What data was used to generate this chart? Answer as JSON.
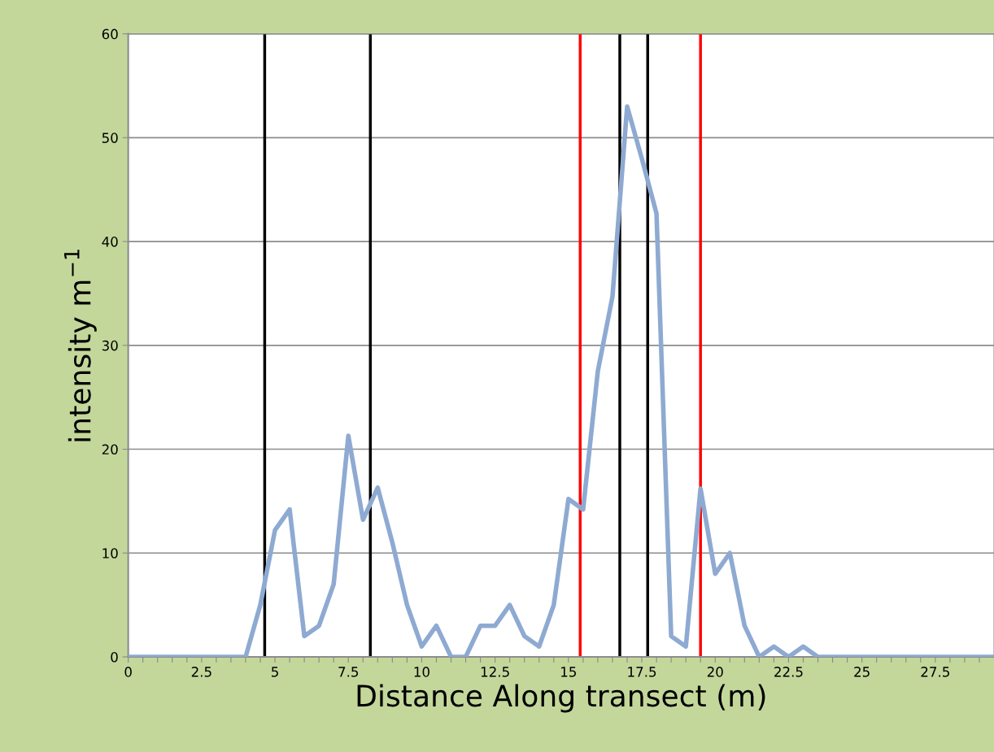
{
  "chart_data": {
    "type": "line",
    "xlabel": "Distance Along transect (m)",
    "ylabel": "intensity m$^{−1}$",
    "x": [
      0,
      0.5,
      1,
      1.5,
      2,
      2.5,
      3,
      3.5,
      4,
      4.5,
      5,
      5.5,
      6,
      6.5,
      7,
      7.5,
      8,
      8.5,
      9,
      9.5,
      10,
      10.5,
      11,
      11.5,
      12,
      12.5,
      13,
      13.5,
      14,
      14.5,
      15,
      15.5,
      16,
      16.5,
      17,
      17.5,
      18,
      18.5,
      19,
      19.5,
      20,
      20.5,
      21,
      21.5,
      22,
      22.5,
      23,
      23.5,
      24,
      24.5,
      25,
      25.5,
      26,
      26.5,
      27,
      27.5,
      28,
      28.5,
      29,
      29.5
    ],
    "series": [
      {
        "color": "#8eaad2",
        "values": [
          0,
          0,
          0,
          0,
          0,
          0,
          0,
          0,
          0,
          5,
          12.2,
          14.2,
          2,
          3,
          7,
          21.3,
          13.2,
          16.3,
          11,
          5,
          1,
          3,
          0,
          0,
          3,
          3,
          5,
          2,
          1,
          5,
          15.2,
          14.2,
          27.5,
          34.7,
          53,
          48,
          42.7,
          2,
          1,
          16.2,
          8,
          10,
          3,
          0,
          1,
          0,
          1,
          0,
          0,
          0,
          0,
          0,
          0,
          0,
          0,
          0,
          0,
          0,
          0,
          0
        ]
      }
    ],
    "xlim": [
      0,
      29.5
    ],
    "ylim": [
      0,
      60
    ],
    "xticks": [
      0,
      {
        "value": 0.5,
        "label": null
      },
      {
        "value": 1,
        "label": null
      },
      {
        "value": 1.5,
        "label": null
      },
      {
        "value": 2,
        "label": null
      },
      2.5,
      {
        "value": 3,
        "label": null
      },
      {
        "value": 3.5,
        "label": null
      },
      {
        "value": 4,
        "label": null
      },
      {
        "value": 4.5,
        "label": null
      },
      5,
      {
        "value": 5.5,
        "label": null
      },
      {
        "value": 6,
        "label": null
      },
      {
        "value": 6.5,
        "label": null
      },
      {
        "value": 7,
        "label": null
      },
      7.5,
      {
        "value": 8,
        "label": null
      },
      {
        "value": 8.5,
        "label": null
      },
      {
        "value": 9,
        "label": null
      },
      {
        "value": 9.5,
        "label": null
      },
      10,
      {
        "value": 10.5,
        "label": null
      },
      {
        "value": 11,
        "label": null
      },
      {
        "value": 11.5,
        "label": null
      },
      {
        "value": 12,
        "label": null
      },
      12.5,
      {
        "value": 13,
        "label": null
      },
      {
        "value": 13.5,
        "label": null
      },
      {
        "value": 14,
        "label": null
      },
      {
        "value": 14.5,
        "label": null
      },
      15,
      {
        "value": 15.5,
        "label": null
      },
      {
        "value": 16,
        "label": null
      },
      {
        "value": 16.5,
        "label": null
      },
      {
        "value": 17,
        "label": null
      },
      17.5,
      {
        "value": 18,
        "label": null
      },
      {
        "value": 18.5,
        "label": null
      },
      {
        "value": 19,
        "label": null
      },
      {
        "value": 19.5,
        "label": null
      },
      20,
      {
        "value": 20.5,
        "label": null
      },
      {
        "value": 21,
        "label": null
      },
      {
        "value": 21.5,
        "label": null
      },
      {
        "value": 22,
        "label": null
      },
      22.5,
      {
        "value": 23,
        "label": null
      },
      {
        "value": 23.5,
        "label": null
      },
      {
        "value": 24,
        "label": null
      },
      {
        "value": 24.5,
        "label": null
      },
      25,
      {
        "value": 25.5,
        "label": null
      },
      {
        "value": 26,
        "label": null
      },
      {
        "value": 26.5,
        "label": null
      },
      {
        "value": 27,
        "label": null
      },
      27.5,
      {
        "value": 28,
        "label": null
      },
      {
        "value": 28.5,
        "label": null
      },
      {
        "value": 29,
        "label": null
      }
    ],
    "yticks": [
      0,
      10,
      20,
      30,
      40,
      50,
      60
    ],
    "grid": "y",
    "marker": "none",
    "line_style": "solid",
    "ref_lines": [
      {
        "axis": "x",
        "value": 4.65,
        "color": "#000000"
      },
      {
        "axis": "x",
        "value": 8.25,
        "color": "#000000"
      },
      {
        "axis": "x",
        "value": 15.4,
        "color": "#ff0000"
      },
      {
        "axis": "x",
        "value": 16.75,
        "color": "#000000"
      },
      {
        "axis": "x",
        "value": 17.7,
        "color": "#000000"
      },
      {
        "axis": "x",
        "value": 19.5,
        "color": "#ff0000"
      }
    ]
  }
}
